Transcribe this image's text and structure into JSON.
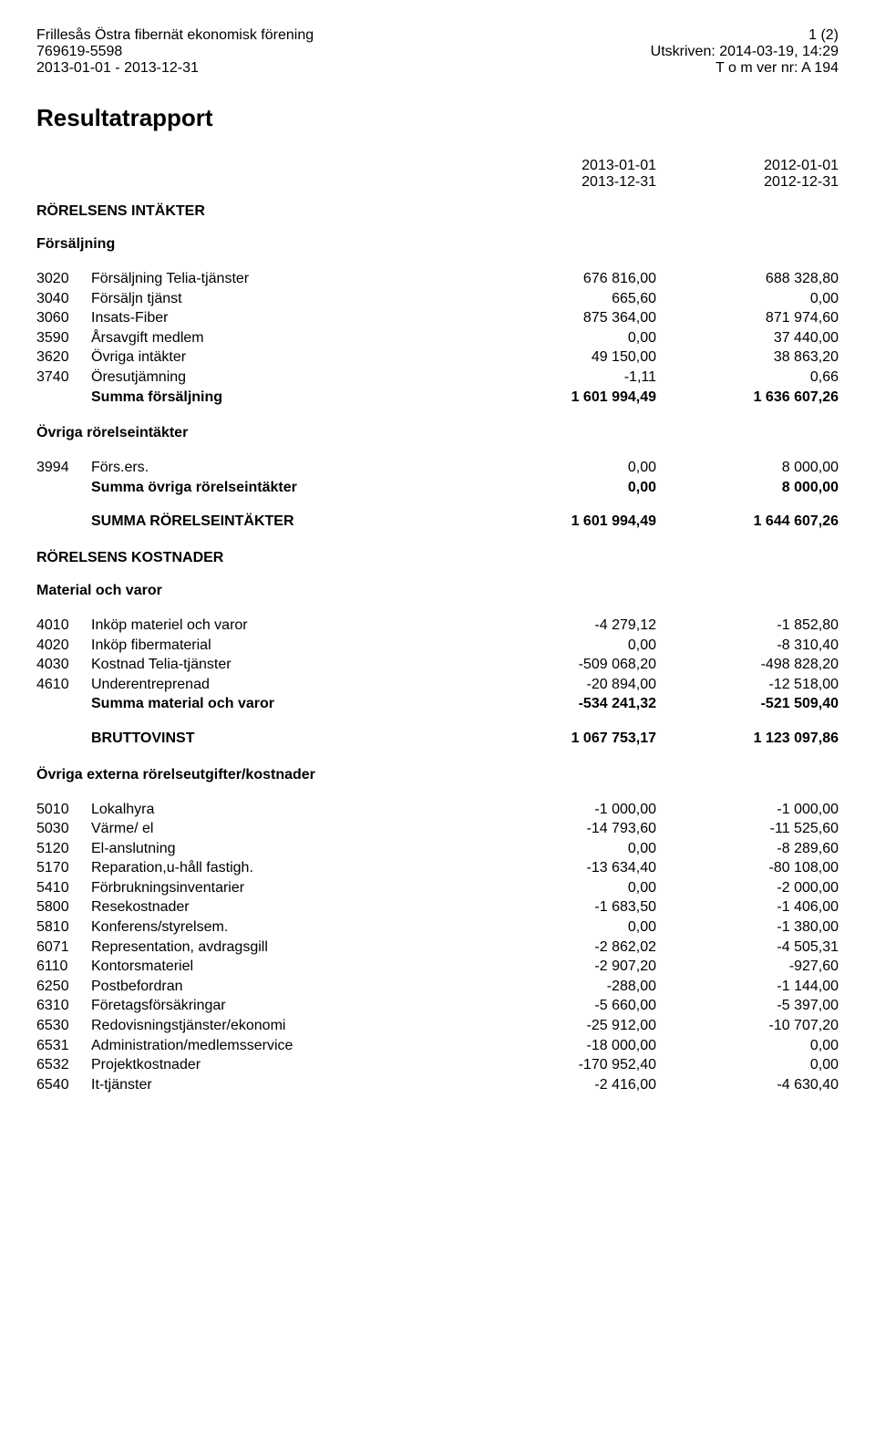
{
  "header": {
    "org_name": "Frillesås Östra fibernät ekonomisk förening",
    "org_nr": "769619-5598",
    "period": "2013-01-01 - 2013-12-31",
    "page": "1 (2)",
    "printed": "Utskriven: 2014-03-19, 14:29",
    "ver": "T o m ver nr: A 194"
  },
  "title": "Resultatrapport",
  "periods": {
    "p1_from": "2013-01-01",
    "p1_to": "2013-12-31",
    "p2_from": "2012-01-01",
    "p2_to": "2012-12-31"
  },
  "s1": {
    "title": "RÖRELSENS INTÄKTER",
    "sub1": {
      "title": "Försäljning",
      "rows": [
        {
          "acct": "3020",
          "label": "Försäljning Telia-tjänster",
          "v1": "676 816,00",
          "v2": "688 328,80"
        },
        {
          "acct": "3040",
          "label": "Försäljn tjänst",
          "v1": "665,60",
          "v2": "0,00"
        },
        {
          "acct": "3060",
          "label": "Insats-Fiber",
          "v1": "875 364,00",
          "v2": "871 974,60"
        },
        {
          "acct": "3590",
          "label": "Årsavgift medlem",
          "v1": "0,00",
          "v2": "37 440,00"
        },
        {
          "acct": "3620",
          "label": "Övriga intäkter",
          "v1": "49 150,00",
          "v2": "38 863,20"
        },
        {
          "acct": "3740",
          "label": "Öresutjämning",
          "v1": "-1,11",
          "v2": "0,66"
        }
      ],
      "sum": {
        "label": "Summa försäljning",
        "v1": "1 601 994,49",
        "v2": "1 636 607,26"
      }
    },
    "sub2": {
      "title": "Övriga rörelseintäkter",
      "rows": [
        {
          "acct": "3994",
          "label": "Förs.ers.",
          "v1": "0,00",
          "v2": "8 000,00"
        }
      ],
      "sum": {
        "label": "Summa övriga rörelseintäkter",
        "v1": "0,00",
        "v2": "8 000,00"
      }
    },
    "total": {
      "label": "SUMMA RÖRELSEINTÄKTER",
      "v1": "1 601 994,49",
      "v2": "1 644 607,26"
    }
  },
  "s2": {
    "title": "RÖRELSENS KOSTNADER",
    "sub1": {
      "title": "Material och varor",
      "rows": [
        {
          "acct": "4010",
          "label": "Inköp materiel och varor",
          "v1": "-4 279,12",
          "v2": "-1 852,80"
        },
        {
          "acct": "4020",
          "label": "Inköp fibermaterial",
          "v1": "0,00",
          "v2": "-8 310,40"
        },
        {
          "acct": "4030",
          "label": "Kostnad Telia-tjänster",
          "v1": "-509 068,20",
          "v2": "-498 828,20"
        },
        {
          "acct": "4610",
          "label": "Underentreprenad",
          "v1": "-20 894,00",
          "v2": "-12 518,00"
        }
      ],
      "sum": {
        "label": "Summa material och varor",
        "v1": "-534 241,32",
        "v2": "-521 509,40"
      }
    },
    "brutto": {
      "label": "BRUTTOVINST",
      "v1": "1 067 753,17",
      "v2": "1 123 097,86"
    },
    "sub2": {
      "title": "Övriga externa rörelseutgifter/kostnader",
      "rows": [
        {
          "acct": "5010",
          "label": "Lokalhyra",
          "v1": "-1 000,00",
          "v2": "-1 000,00"
        },
        {
          "acct": "5030",
          "label": "Värme/ el",
          "v1": "-14 793,60",
          "v2": "-11 525,60"
        },
        {
          "acct": "5120",
          "label": "El-anslutning",
          "v1": "0,00",
          "v2": "-8 289,60"
        },
        {
          "acct": "5170",
          "label": "Reparation,u-håll fastigh.",
          "v1": "-13 634,40",
          "v2": "-80 108,00"
        },
        {
          "acct": "5410",
          "label": "Förbrukningsinventarier",
          "v1": "0,00",
          "v2": "-2 000,00"
        },
        {
          "acct": "5800",
          "label": "Resekostnader",
          "v1": "-1 683,50",
          "v2": "-1 406,00"
        },
        {
          "acct": "5810",
          "label": "Konferens/styrelsem.",
          "v1": "0,00",
          "v2": "-1 380,00"
        },
        {
          "acct": "6071",
          "label": "Representation, avdragsgill",
          "v1": "-2 862,02",
          "v2": "-4 505,31"
        },
        {
          "acct": "6110",
          "label": "Kontorsmateriel",
          "v1": "-2 907,20",
          "v2": "-927,60"
        },
        {
          "acct": "6250",
          "label": "Postbefordran",
          "v1": "-288,00",
          "v2": "-1 144,00"
        },
        {
          "acct": "6310",
          "label": "Företagsförsäkringar",
          "v1": "-5 660,00",
          "v2": "-5 397,00"
        },
        {
          "acct": "6530",
          "label": "Redovisningstjänster/ekonomi",
          "v1": "-25 912,00",
          "v2": "-10 707,20"
        },
        {
          "acct": "6531",
          "label": "Administration/medlemsservice",
          "v1": "-18 000,00",
          "v2": "0,00"
        },
        {
          "acct": "6532",
          "label": "Projektkostnader",
          "v1": "-170 952,40",
          "v2": "0,00"
        },
        {
          "acct": "6540",
          "label": "It-tjänster",
          "v1": "-2 416,00",
          "v2": "-4 630,40"
        }
      ]
    }
  }
}
